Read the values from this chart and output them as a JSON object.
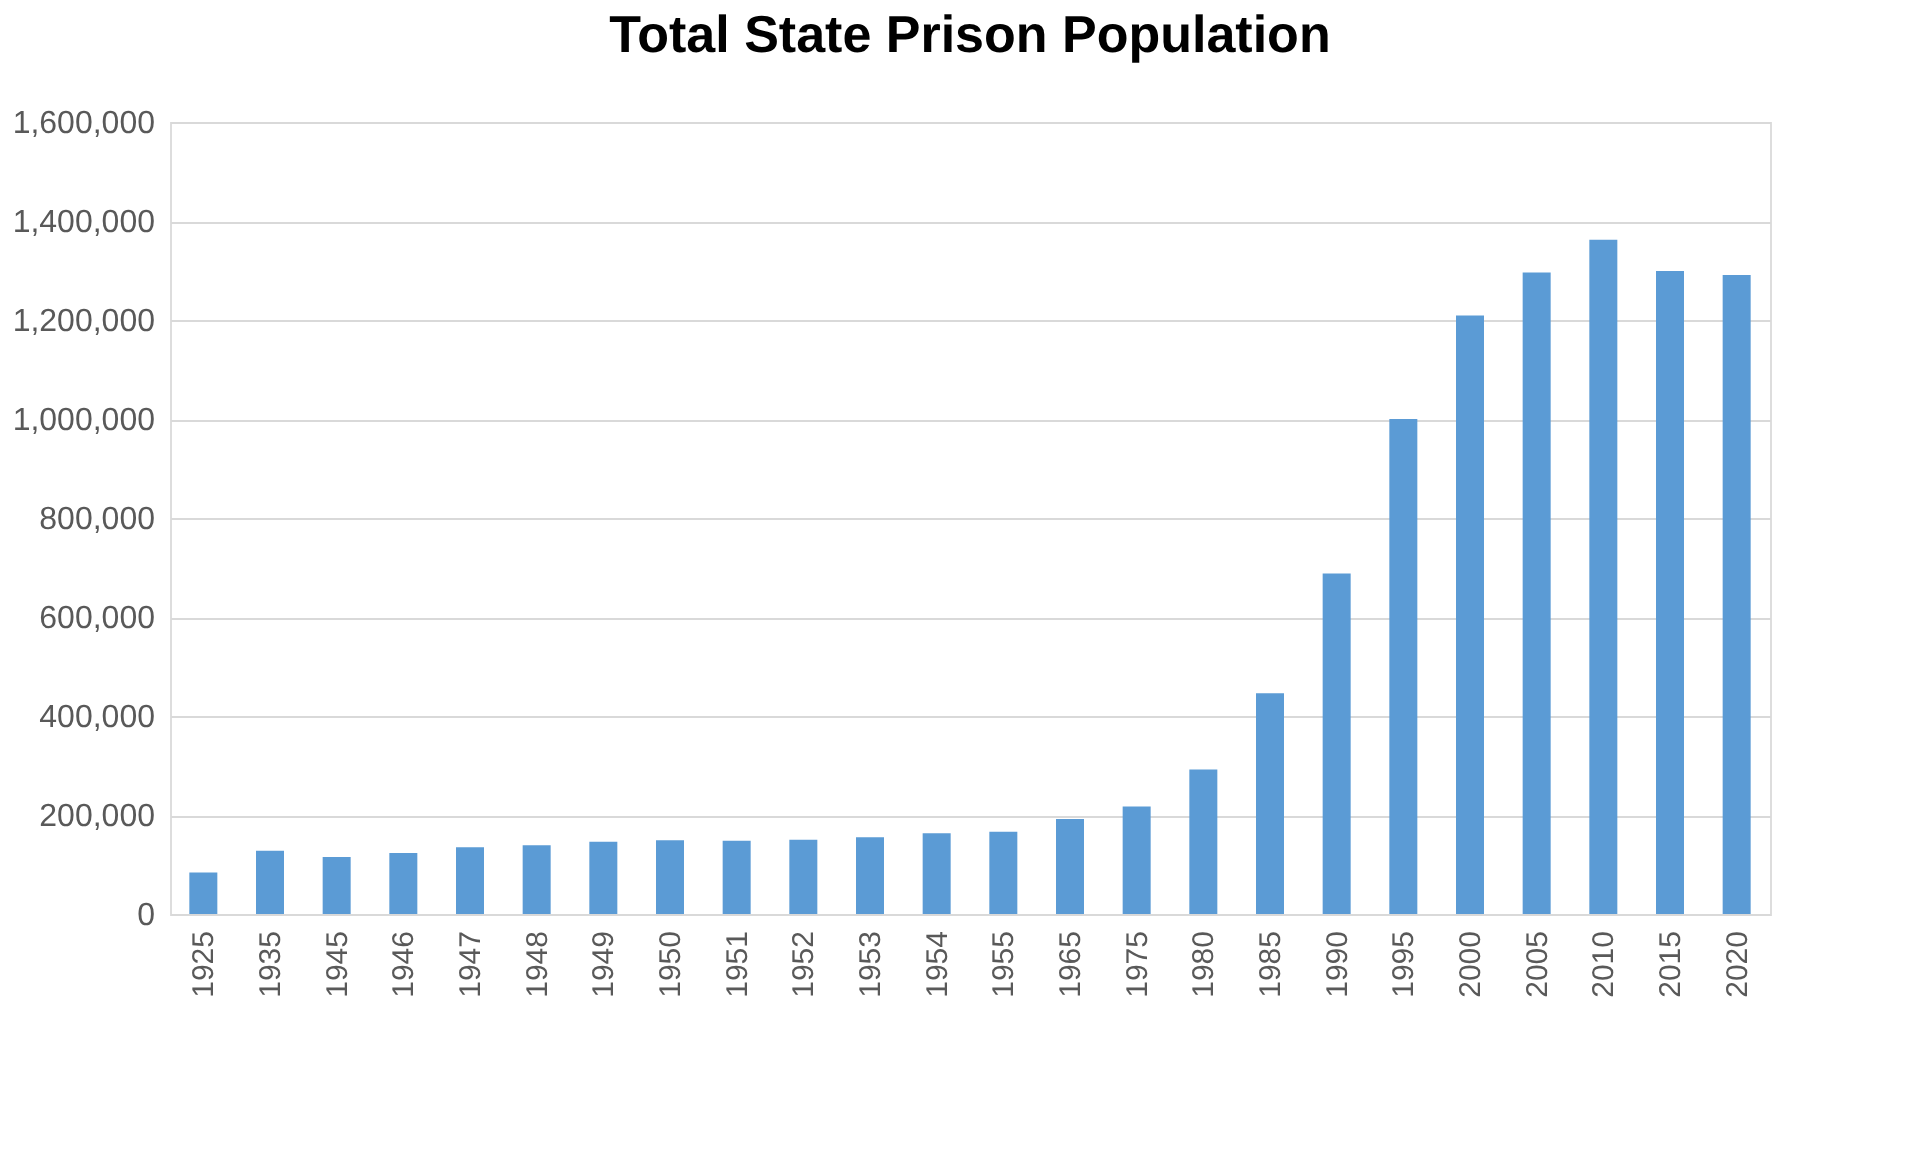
{
  "chart_data": {
    "type": "bar",
    "title": "Total State Prison Population",
    "categories": [
      "1925",
      "1935",
      "1945",
      "1946",
      "1947",
      "1948",
      "1949",
      "1950",
      "1951",
      "1952",
      "1953",
      "1954",
      "1955",
      "1965",
      "1975",
      "1980",
      "1985",
      "1990",
      "1995",
      "2000",
      "2005",
      "2010",
      "2015",
      "2020"
    ],
    "values": [
      84000,
      128000,
      115000,
      123000,
      135000,
      139000,
      146000,
      149000,
      148000,
      150000,
      155000,
      163000,
      166000,
      192000,
      217000,
      292000,
      446000,
      688000,
      1000000,
      1209000,
      1296000,
      1362000,
      1299000,
      1291000
    ],
    "color": "#5b9bd5",
    "ylim": [
      0,
      1600000
    ],
    "yticks": [
      {
        "value": 0,
        "label": "0"
      },
      {
        "value": 200000,
        "label": "200,000"
      },
      {
        "value": 400000,
        "label": "400,000"
      },
      {
        "value": 600000,
        "label": "600,000"
      },
      {
        "value": 800000,
        "label": "800,000"
      },
      {
        "value": 1000000,
        "label": "1,000,000"
      },
      {
        "value": 1200000,
        "label": "1,200,000"
      },
      {
        "value": 1400000,
        "label": "1,400,000"
      },
      {
        "value": 1600000,
        "label": "1,600,000"
      }
    ],
    "grid": "y"
  }
}
